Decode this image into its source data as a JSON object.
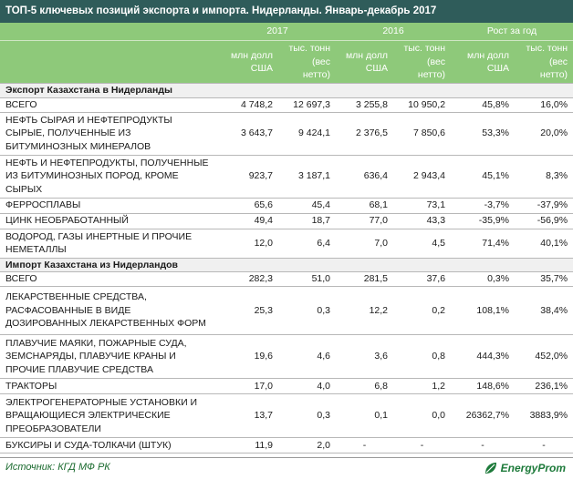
{
  "title": "ТОП-5 ключевых позиций экспорта и импорта. Нидерланды. Январь-декабрь 2017",
  "header": {
    "year_2017": "2017",
    "year_2016": "2016",
    "growth": "Рост за год",
    "mln": "млн долл США",
    "tons": "тыс. тонн (вес нетто)"
  },
  "export": {
    "section": "Экспорт Казахстана в Нидерланды",
    "rows": [
      {
        "name": "ВСЕГО",
        "v1": "4 748,2",
        "v2": "12 697,3",
        "v3": "3 255,8",
        "v4": "10 950,2",
        "g1": "45,8%",
        "g2": "16,0%"
      },
      {
        "name": "НЕФТЬ СЫРАЯ И НЕФТЕПРОДУКТЫ СЫРЫЕ, ПОЛУЧЕННЫЕ ИЗ БИТУМИНОЗНЫХ МИНЕРАЛОВ",
        "v1": "3 643,7",
        "v2": "9 424,1",
        "v3": "2 376,5",
        "v4": "7 850,6",
        "g1": "53,3%",
        "g2": "20,0%"
      },
      {
        "name": "НЕФТЬ И НЕФТЕПРОДУКТЫ, ПОЛУЧЕННЫЕ ИЗ БИТУМИНОЗНЫХ ПОРОД, КРОМЕ СЫРЫХ",
        "v1": "923,7",
        "v2": "3 187,1",
        "v3": "636,4",
        "v4": "2 943,4",
        "g1": "45,1%",
        "g2": "8,3%"
      },
      {
        "name": "ФЕРРОСПЛАВЫ",
        "v1": "65,6",
        "v2": "45,4",
        "v3": "68,1",
        "v4": "73,1",
        "g1": "-3,7%",
        "g2": "-37,9%"
      },
      {
        "name": "ЦИНК НЕОБРАБОТАННЫЙ",
        "v1": "49,4",
        "v2": "18,7",
        "v3": "77,0",
        "v4": "43,3",
        "g1": "-35,9%",
        "g2": "-56,9%"
      },
      {
        "name": "ВОДОРОД, ГАЗЫ ИНЕРТНЫЕ И ПРОЧИЕ НЕМЕТАЛЛЫ",
        "v1": "12,0",
        "v2": "6,4",
        "v3": "7,0",
        "v4": "4,5",
        "g1": "71,4%",
        "g2": "40,1%"
      }
    ]
  },
  "import": {
    "section": "Импорт Казахстана из Нидерландов",
    "rows": [
      {
        "name": "ВСЕГО",
        "v1": "282,3",
        "v2": "51,0",
        "v3": "281,5",
        "v4": "37,6",
        "g1": "0,3%",
        "g2": "35,7%"
      },
      {
        "name": "ЛЕКАРСТВЕННЫЕ СРЕДСТВА, РАСФАСОВАННЫЕ В ВИДЕ ДОЗИРОВАННЫХ ЛЕКАРСТВЕННЫХ ФОРМ",
        "v1": "25,3",
        "v2": "0,3",
        "v3": "12,2",
        "v4": "0,2",
        "g1": "108,1%",
        "g2": "38,4%"
      },
      {
        "name": "ПЛАВУЧИЕ МАЯКИ, ПОЖАРНЫЕ СУДА, ЗЕМСНАРЯДЫ, ПЛАВУЧИЕ КРАНЫ И ПРОЧИЕ ПЛАВУЧИЕ СРЕДСТВА",
        "v1": "19,6",
        "v2": "4,6",
        "v3": "3,6",
        "v4": "0,8",
        "g1": "444,3%",
        "g2": "452,0%"
      },
      {
        "name": "ТРАКТОРЫ",
        "v1": "17,0",
        "v2": "4,0",
        "v3": "6,8",
        "v4": "1,2",
        "g1": "148,6%",
        "g2": "236,1%"
      },
      {
        "name": "ЭЛЕКТРОГЕНЕРАТОРНЫЕ УСТАНОВКИ И ВРАЩАЮЩИЕСЯ ЭЛЕКТРИЧЕСКИЕ ПРЕОБРАЗОВАТЕЛИ",
        "v1": "13,7",
        "v2": "0,3",
        "v3": "0,1",
        "v4": "0,0",
        "g1": "26362,7%",
        "g2": "3883,9%"
      },
      {
        "name": "БУКСИРЫ И СУДА-ТОЛКАЧИ (ШТУК)",
        "v1": "11,9",
        "v2": "2,0",
        "v3": "-",
        "v4": "-",
        "g1": "-",
        "g2": "-"
      }
    ]
  },
  "footer": {
    "source": "Источник: КГД МФ РК",
    "brand": "EnergyProm",
    "logo_icon": "leaf-logo-icon"
  },
  "colors": {
    "title_bg": "#2f5c5a",
    "header_bg": "#8ec97a",
    "brand": "#1d7a3a"
  }
}
